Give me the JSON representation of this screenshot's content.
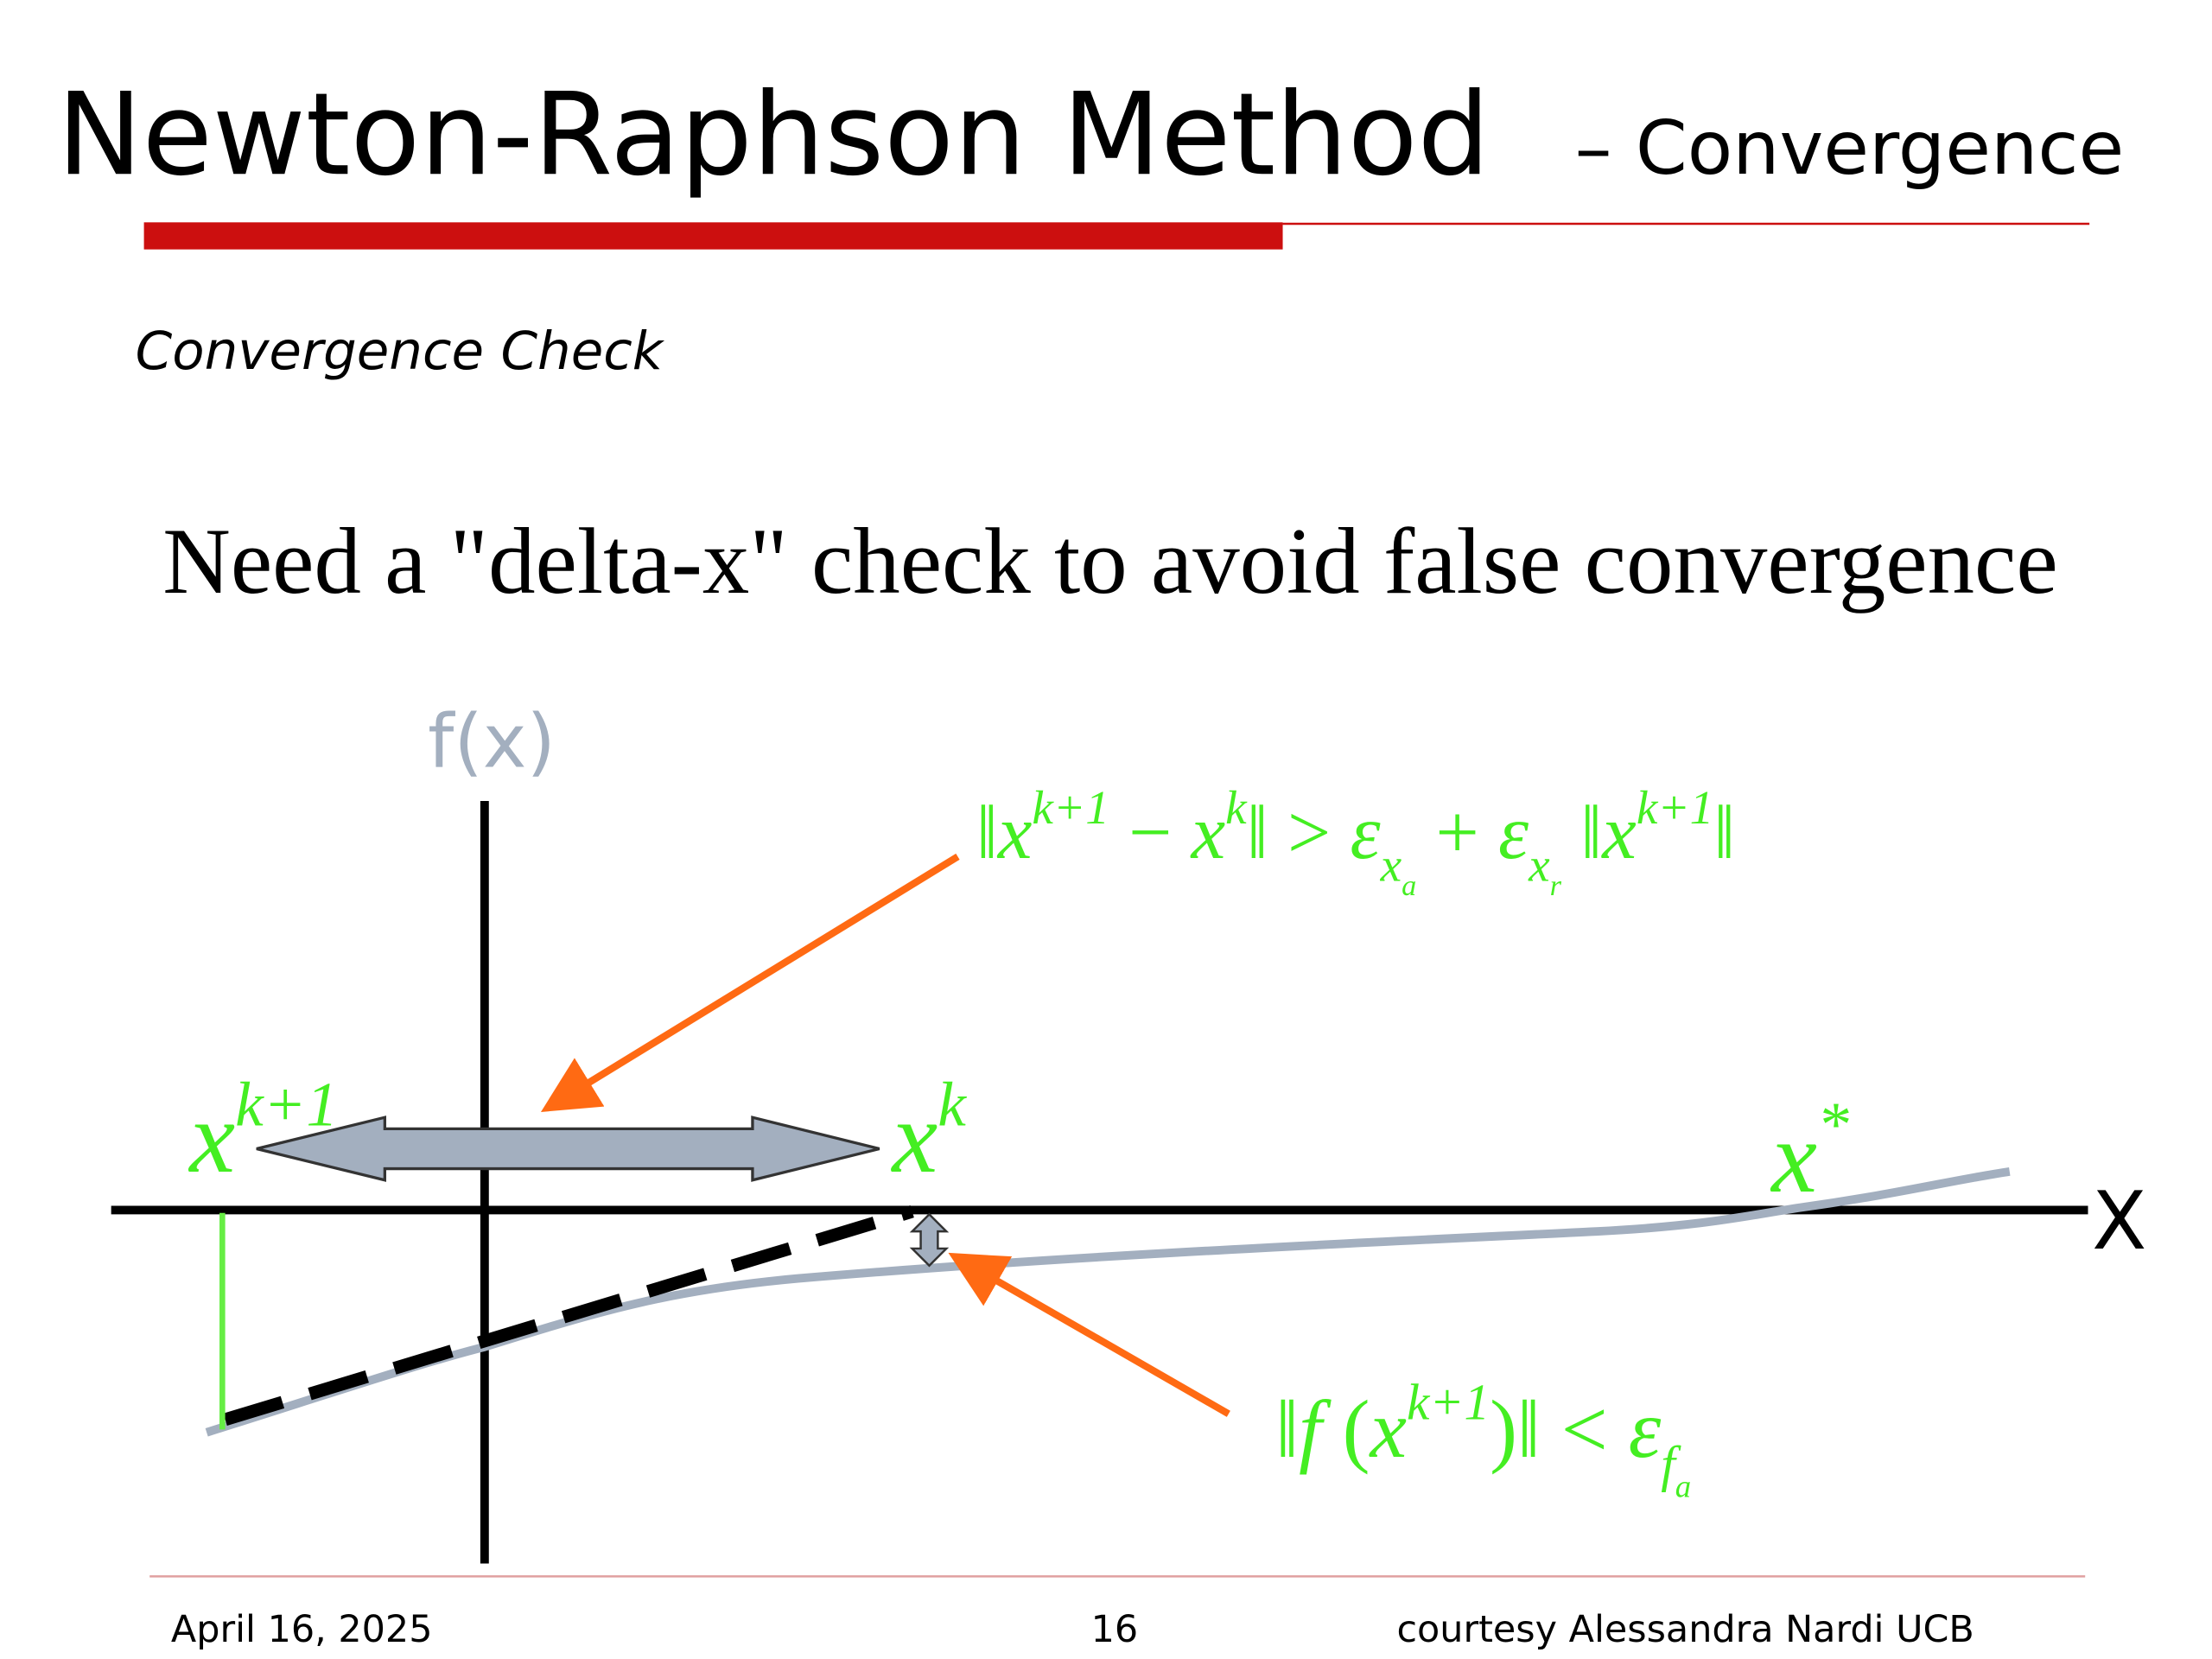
{
  "header": {
    "title": "Newton-Raphson Method",
    "subtitle": "– Convergence"
  },
  "section": "Convergence Check",
  "statement": "Need a \"delta-x\" check to avoid false convergence",
  "diagram": {
    "y_axis_label": "f(x)",
    "x_axis_label": "X",
    "points": {
      "x_next": {
        "base": "x",
        "sup": "k+1"
      },
      "x_curr": {
        "base": "x",
        "sup": "k"
      },
      "x_root": {
        "base": "x",
        "sup": "*"
      }
    },
    "delta_x_condition": [
      "‖",
      {
        "base": "x",
        "sup": "k+1"
      },
      " − ",
      {
        "base": "x",
        "sup": "k"
      },
      "‖ > ",
      {
        "base": "ε",
        "sub": {
          "base": "x",
          "sub": "a"
        }
      },
      "  +  ",
      {
        "base": "ε",
        "sub": {
          "base": "x",
          "sub": "r"
        }
      },
      " ‖",
      {
        "base": "x",
        "sup": "k+1"
      },
      "‖"
    ],
    "residual_condition": [
      "‖",
      {
        "base": "f"
      },
      " (",
      {
        "base": "x",
        "sup": "k+1"
      },
      ")‖ < ",
      {
        "base": "ε",
        "sub": {
          "base": "f",
          "sub": "a"
        }
      }
    ]
  },
  "footer": {
    "date": "April 16, 2025",
    "page": "16",
    "credit": "courtesy Alessandra Nardi UCB"
  }
}
